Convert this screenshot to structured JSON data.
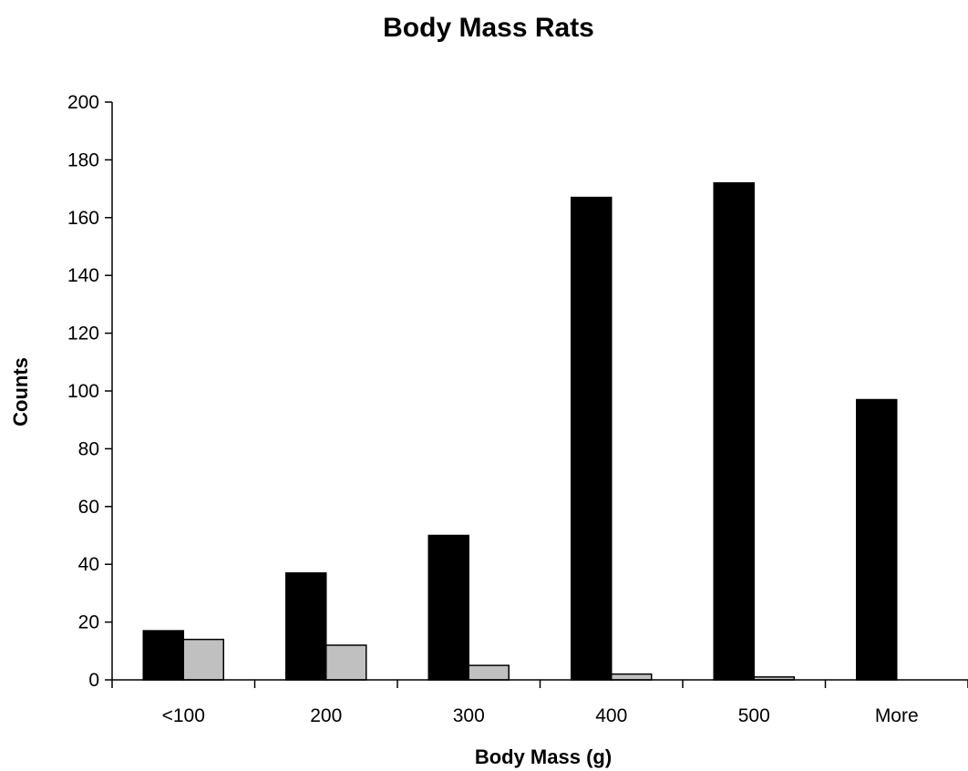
{
  "chart_data": {
    "type": "bar",
    "title": "Body Mass Rats",
    "xlabel": "Body Mass (g)",
    "ylabel": "Counts",
    "categories": [
      "<100",
      "200",
      "300",
      "400",
      "500",
      "More"
    ],
    "series": [
      {
        "values": [
          17,
          37,
          50,
          167,
          172,
          97
        ],
        "color": "#000000"
      },
      {
        "values": [
          14,
          12,
          5,
          2,
          1,
          0
        ],
        "color": "#c0c0c0"
      }
    ],
    "ylim": [
      0,
      200
    ],
    "yticks": [
      0,
      20,
      40,
      60,
      80,
      100,
      120,
      140,
      160,
      180,
      200
    ],
    "grid": false,
    "legend": false
  }
}
